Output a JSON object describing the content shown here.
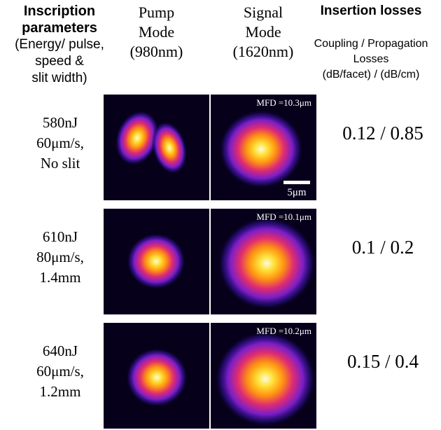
{
  "header": {
    "params": [
      "Inscription",
      "parameters",
      "(Energy/ pulse,",
      "speed &",
      "slit width)"
    ],
    "pump": [
      "Pump",
      "Mode",
      "(980nm)"
    ],
    "signal": [
      "Signal",
      "Mode",
      "(1620nm)"
    ],
    "losses": {
      "title": "Insertion losses",
      "subtitle": [
        "Coupling / Propagation",
        "Losses",
        "(dB/facet) / (dB/cm)"
      ]
    }
  },
  "scale_bar": "5μm",
  "rows": [
    {
      "params": [
        "580nJ",
        "60μm/s,",
        "No slit"
      ],
      "mfd": "MFD =10.3μm",
      "losses": "0.12 / 0.85"
    },
    {
      "params": [
        "610nJ",
        "80μm/s,",
        "1.4mm"
      ],
      "mfd": "MFD =10.1μm",
      "losses": "0.1 / 0.2"
    },
    {
      "params": [
        "640nJ",
        "60μm/s,",
        "1.2mm"
      ],
      "mfd": "MFD =10.2μm",
      "losses": "0.15 / 0.4"
    }
  ]
}
